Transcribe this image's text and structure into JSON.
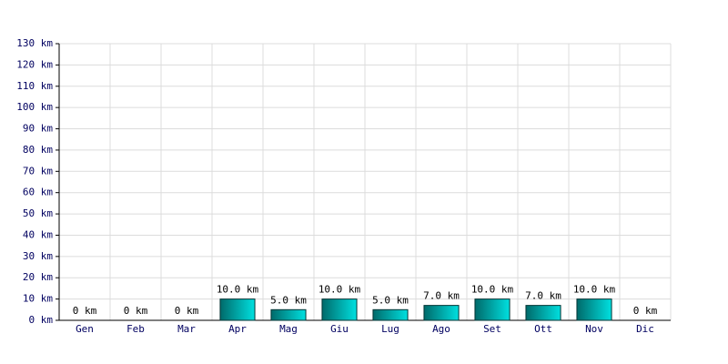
{
  "chart_data": {
    "type": "bar",
    "categories": [
      "Gen",
      "Feb",
      "Mar",
      "Apr",
      "Mag",
      "Giu",
      "Lug",
      "Ago",
      "Set",
      "Ott",
      "Nov",
      "Dic"
    ],
    "values": [
      0,
      0,
      0,
      10,
      5,
      10,
      5,
      7,
      10,
      7,
      10,
      0
    ],
    "value_labels": [
      "0 km",
      "0 km",
      "0 km",
      "10.0 km",
      "5.0 km",
      "10.0 km",
      "5.0 km",
      "7.0 km",
      "10.0 km",
      "7.0 km",
      "10.0 km",
      "0 km"
    ],
    "color": "#00e0e0",
    "ylim": [
      0,
      130
    ],
    "yticks": [
      {
        "value": 0,
        "label": "0 km"
      },
      {
        "value": 10,
        "label": "10 km"
      },
      {
        "value": 20,
        "label": "20 km"
      },
      {
        "value": 30,
        "label": "30 km"
      },
      {
        "value": 40,
        "label": "40 km"
      },
      {
        "value": 50,
        "label": "50 km"
      },
      {
        "value": 60,
        "label": "60 km"
      },
      {
        "value": 70,
        "label": "70 km"
      },
      {
        "value": 80,
        "label": "80 km"
      },
      {
        "value": 90,
        "label": "90 km"
      },
      {
        "value": 100,
        "label": "100 km"
      },
      {
        "value": 110,
        "label": "110 km"
      },
      {
        "value": 120,
        "label": "120 km"
      },
      {
        "value": 130,
        "label": "130 km"
      }
    ],
    "grid": true
  }
}
